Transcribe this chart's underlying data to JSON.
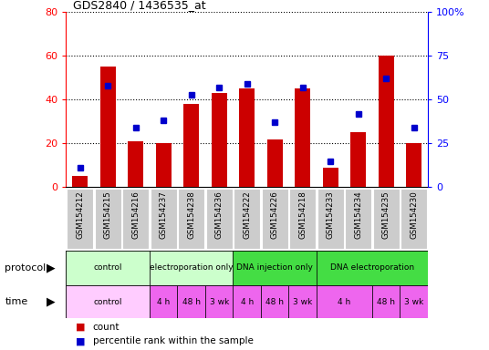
{
  "title": "GDS2840 / 1436535_at",
  "samples": [
    "GSM154212",
    "GSM154215",
    "GSM154216",
    "GSM154237",
    "GSM154238",
    "GSM154236",
    "GSM154222",
    "GSM154226",
    "GSM154218",
    "GSM154233",
    "GSM154234",
    "GSM154235",
    "GSM154230"
  ],
  "counts": [
    5,
    55,
    21,
    20,
    38,
    43,
    45,
    22,
    45,
    9,
    25,
    60,
    20
  ],
  "percentile_ranks": [
    11,
    58,
    34,
    38,
    53,
    57,
    59,
    37,
    57,
    15,
    42,
    62,
    34
  ],
  "ylim_left": [
    0,
    80
  ],
  "ylim_right": [
    0,
    100
  ],
  "yticks_left": [
    0,
    20,
    40,
    60,
    80
  ],
  "yticks_right": [
    0,
    25,
    50,
    75,
    100
  ],
  "bar_color": "#cc0000",
  "dot_color": "#0000cc",
  "bg_color": "#ffffff",
  "tick_label_bg": "#cccccc",
  "protocol_groups": [
    {
      "label": "control",
      "start": 0,
      "end": 3,
      "color": "#ccffcc"
    },
    {
      "label": "electroporation only",
      "start": 3,
      "end": 6,
      "color": "#ccffcc"
    },
    {
      "label": "DNA injection only",
      "start": 6,
      "end": 9,
      "color": "#44dd44"
    },
    {
      "label": "DNA electroporation",
      "start": 9,
      "end": 13,
      "color": "#44dd44"
    }
  ],
  "time_groups": [
    {
      "label": "control",
      "start": 0,
      "end": 3,
      "color": "#ffccff"
    },
    {
      "label": "4 h",
      "start": 3,
      "end": 4,
      "color": "#ee66ee"
    },
    {
      "label": "48 h",
      "start": 4,
      "end": 5,
      "color": "#ee66ee"
    },
    {
      "label": "3 wk",
      "start": 5,
      "end": 6,
      "color": "#ee66ee"
    },
    {
      "label": "4 h",
      "start": 6,
      "end": 7,
      "color": "#ee66ee"
    },
    {
      "label": "48 h",
      "start": 7,
      "end": 8,
      "color": "#ee66ee"
    },
    {
      "label": "3 wk",
      "start": 8,
      "end": 9,
      "color": "#ee66ee"
    },
    {
      "label": "4 h",
      "start": 9,
      "end": 11,
      "color": "#ee66ee"
    },
    {
      "label": "48 h",
      "start": 11,
      "end": 12,
      "color": "#ee66ee"
    },
    {
      "label": "3 wk",
      "start": 12,
      "end": 13,
      "color": "#ee66ee"
    }
  ]
}
